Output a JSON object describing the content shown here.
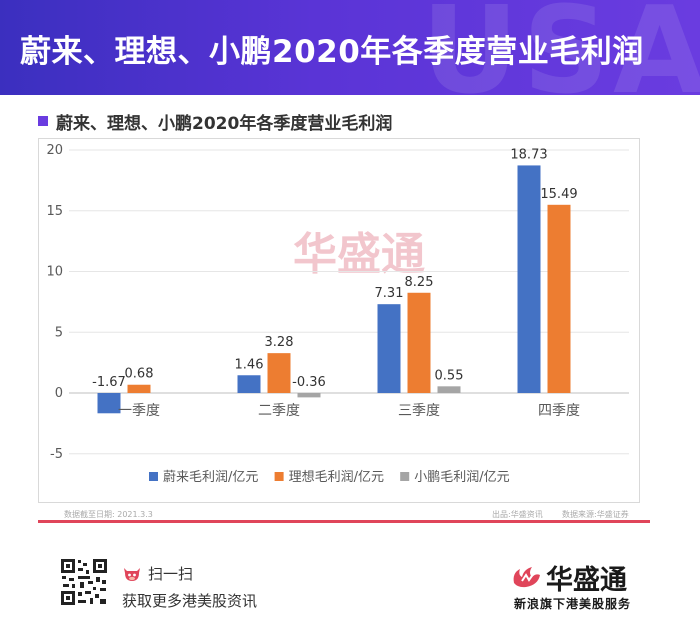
{
  "header": {
    "title": "蔚来、理想、小鹏2020年各季度营业毛利润",
    "decor_text": "USA"
  },
  "chart_heading": "蔚来、理想、小鹏2020年各季度营业毛利润",
  "chart_data": {
    "type": "bar",
    "title": "蔚来、理想、小鹏2020年各季度营业毛利润",
    "categories": [
      "一季度",
      "二季度",
      "三季度",
      "四季度"
    ],
    "series": [
      {
        "name": "蔚来毛利润/亿元",
        "color": "#4472c4",
        "values": [
          -1.67,
          1.46,
          7.31,
          18.73
        ]
      },
      {
        "name": "理想毛利润/亿元",
        "color": "#ed7d31",
        "values": [
          0.68,
          3.28,
          8.25,
          15.49
        ]
      },
      {
        "name": "小鹏毛利润/亿元",
        "color": "#a5a5a5",
        "values": [
          null,
          -0.36,
          0.55,
          null
        ]
      }
    ],
    "data_labels": [
      [
        "-1.67",
        "1.46",
        "7.31",
        "18.73"
      ],
      [
        "0.68",
        "3.28",
        "8.25",
        "15.49"
      ],
      [
        "",
        "-0.36",
        "0.55",
        ""
      ]
    ],
    "ylim": [
      -5,
      20
    ],
    "yticks": [
      -5,
      0,
      5,
      10,
      15,
      20
    ],
    "grid": true,
    "legend": "bottom"
  },
  "watermark": "华盛通",
  "footer": {
    "date_note": "数据截至日期:   2021.3.3",
    "source_note": "出品:华盛资讯",
    "data_source_note": "数据来源:华盛证券",
    "scan_label": "扫一扫",
    "more_label": "获取更多港美股资讯",
    "brand_name": "华盛通",
    "brand_sub": "新浪旗下港美股服务",
    "line_color": "#e0455a"
  }
}
